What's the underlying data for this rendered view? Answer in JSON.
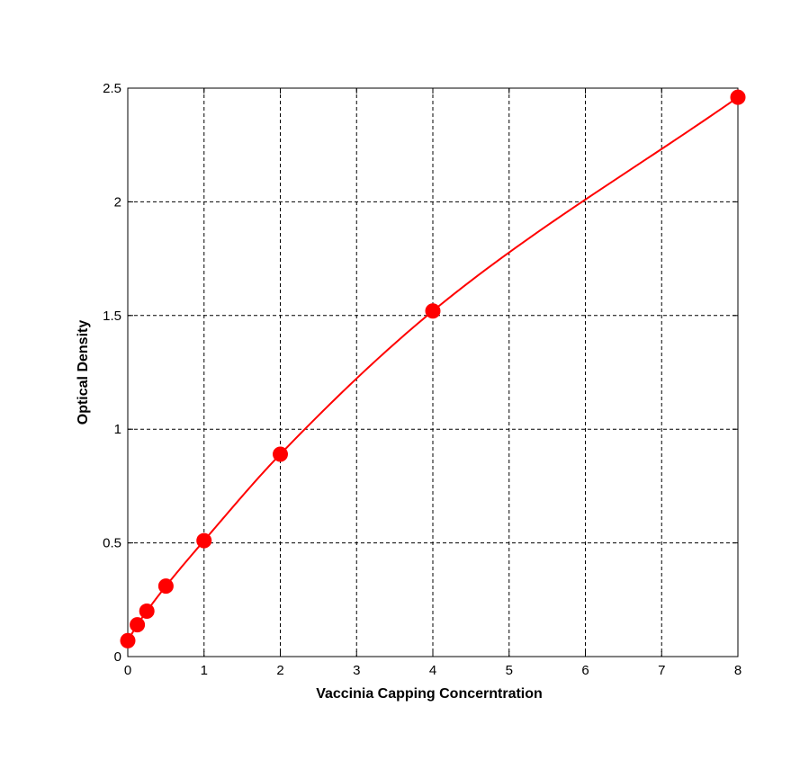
{
  "chart_data": {
    "type": "line",
    "title": "",
    "xlabel": "Vaccinia Capping Concerntration",
    "ylabel": "Optical Density",
    "xlim": [
      0,
      8
    ],
    "ylim": [
      0,
      2.5
    ],
    "x_ticks": [
      0,
      1,
      2,
      3,
      4,
      5,
      6,
      7,
      8
    ],
    "x_tick_labels": [
      "0",
      "1",
      "2",
      "3",
      "4",
      "5",
      "6",
      "7",
      "8"
    ],
    "y_ticks": [
      0,
      0.5,
      1,
      1.5,
      2,
      2.5
    ],
    "y_tick_labels": [
      "0",
      "0.5",
      "1",
      "1.5",
      "2",
      "2.5"
    ],
    "grid": true,
    "legend": "none",
    "series": [
      {
        "color": "#ff0000",
        "points": [
          {
            "x": 0,
            "y": 0.07
          },
          {
            "x": 0.125,
            "y": 0.14
          },
          {
            "x": 0.25,
            "y": 0.2
          },
          {
            "x": 0.5,
            "y": 0.31
          },
          {
            "x": 1,
            "y": 0.51
          },
          {
            "x": 2,
            "y": 0.89
          },
          {
            "x": 4,
            "y": 1.52
          },
          {
            "x": 8,
            "y": 2.46
          }
        ]
      }
    ]
  }
}
